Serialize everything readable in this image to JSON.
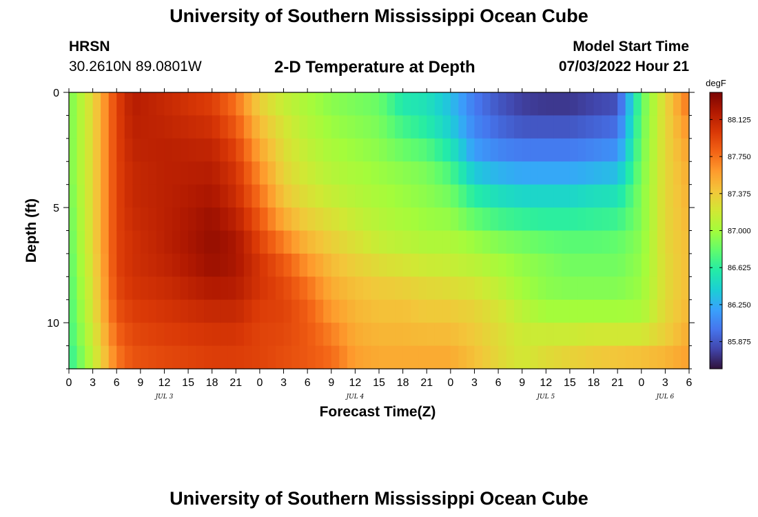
{
  "header": {
    "title": "University of Southern Mississippi Ocean Cube",
    "station": "HRSN",
    "coords": "30.2610N  89.0801W",
    "subtitle": "2-D Temperature at Depth",
    "model_start_label": "Model Start Time",
    "model_start_value": "07/03/2022 Hour 21"
  },
  "footer": {
    "title": "University of Southern Mississippi Ocean Cube"
  },
  "chart_data": {
    "type": "heatmap",
    "title": "2-D Temperature at Depth",
    "xlabel": "Forecast Time(Z)",
    "ylabel": "Depth (ft)",
    "colorbar_label": "degF",
    "x_tick_labels": [
      "0",
      "3",
      "6",
      "9",
      "12",
      "15",
      "18",
      "21",
      "0",
      "3",
      "6",
      "9",
      "12",
      "15",
      "18",
      "21",
      "0",
      "3",
      "6",
      "9",
      "12",
      "15",
      "18",
      "21",
      "0",
      "3",
      "6"
    ],
    "x_hours": [
      0,
      3,
      6,
      9,
      12,
      15,
      18,
      21,
      24,
      27,
      30,
      33,
      36,
      39,
      42,
      45,
      48,
      51,
      54,
      57,
      60,
      63,
      66,
      69,
      72,
      75,
      78
    ],
    "x_range_hours": [
      0,
      78
    ],
    "day_labels": [
      {
        "label": "JUL 3",
        "hour": 12
      },
      {
        "label": "JUL 4",
        "hour": 36
      },
      {
        "label": "JUL 5",
        "hour": 60
      },
      {
        "label": "JUL 6",
        "hour": 75
      }
    ],
    "y_tick_labels": [
      "0",
      "5",
      "10"
    ],
    "y_ticks": [
      0,
      5,
      10
    ],
    "y_range_ft": [
      0,
      12
    ],
    "colorbar_ticks": [
      "88.125",
      "87.750",
      "87.375",
      "87.000",
      "86.625",
      "86.250",
      "85.875"
    ],
    "colorbar_tick_values": [
      88.125,
      87.75,
      87.375,
      87.0,
      86.625,
      86.25,
      85.875
    ],
    "color_range_degF": [
      85.6,
      88.4
    ],
    "colormap": [
      "#30123b",
      "#4145ab",
      "#4675ed",
      "#39a2fc",
      "#1bcfd4",
      "#24eca6",
      "#61fc6c",
      "#a4fc3b",
      "#d1e834",
      "#f3c63a",
      "#fe9b2d",
      "#f36315",
      "#d93806",
      "#b11901",
      "#7a0402"
    ],
    "time_hours": [
      0,
      3,
      6,
      8,
      12,
      18,
      21,
      24,
      27,
      30,
      33,
      36,
      39,
      42,
      45,
      48,
      51,
      54,
      57,
      60,
      63,
      66,
      69,
      72,
      75,
      78
    ],
    "depth_ft": [
      0,
      1,
      2,
      3,
      4,
      5,
      6,
      7,
      8,
      9,
      10,
      11,
      12
    ],
    "temperature_degF": [
      [
        86.85,
        87.3,
        87.95,
        88.2,
        88.1,
        87.95,
        87.7,
        87.3,
        87.1,
        87.0,
        86.9,
        86.85,
        86.8,
        86.5,
        86.5,
        86.3,
        86.0,
        85.85,
        85.75,
        85.7,
        85.7,
        85.75,
        85.8,
        86.8,
        87.3,
        87.8
      ],
      [
        86.85,
        87.3,
        87.95,
        88.15,
        88.1,
        88.0,
        87.8,
        87.4,
        87.2,
        87.05,
        86.95,
        86.9,
        86.85,
        86.65,
        86.55,
        86.35,
        86.05,
        85.9,
        85.8,
        85.8,
        85.8,
        85.85,
        85.9,
        86.8,
        87.3,
        87.7
      ],
      [
        86.85,
        87.3,
        87.95,
        88.15,
        88.15,
        88.1,
        87.9,
        87.5,
        87.25,
        87.1,
        87.0,
        86.95,
        86.9,
        86.75,
        86.65,
        86.45,
        86.1,
        86.0,
        85.95,
        85.95,
        85.95,
        86.0,
        86.05,
        86.85,
        87.3,
        87.6
      ],
      [
        86.85,
        87.3,
        87.95,
        88.1,
        88.15,
        88.15,
        88.0,
        87.6,
        87.3,
        87.15,
        87.05,
        87.0,
        86.95,
        86.9,
        86.85,
        86.65,
        86.25,
        86.15,
        86.1,
        86.1,
        86.1,
        86.15,
        86.2,
        86.85,
        87.3,
        87.55
      ],
      [
        86.85,
        87.3,
        87.95,
        88.1,
        88.15,
        88.2,
        88.05,
        87.7,
        87.35,
        87.2,
        87.1,
        87.05,
        87.0,
        86.95,
        86.9,
        86.8,
        86.5,
        86.4,
        86.35,
        86.35,
        86.35,
        86.4,
        86.45,
        86.9,
        87.3,
        87.5
      ],
      [
        86.8,
        87.3,
        87.95,
        88.1,
        88.15,
        88.25,
        88.1,
        87.8,
        87.45,
        87.3,
        87.2,
        87.1,
        87.05,
        87.0,
        86.95,
        86.9,
        86.7,
        86.6,
        86.55,
        86.55,
        86.55,
        86.6,
        86.6,
        86.9,
        87.3,
        87.5
      ],
      [
        86.8,
        87.3,
        87.95,
        88.05,
        88.15,
        88.3,
        88.2,
        87.9,
        87.6,
        87.4,
        87.3,
        87.2,
        87.1,
        87.05,
        87.0,
        87.0,
        86.9,
        86.8,
        86.75,
        86.7,
        86.7,
        86.7,
        86.75,
        86.9,
        87.3,
        87.45
      ],
      [
        86.75,
        87.3,
        87.95,
        88.05,
        88.15,
        88.3,
        88.25,
        88.0,
        87.8,
        87.55,
        87.4,
        87.3,
        87.2,
        87.15,
        87.1,
        87.1,
        87.05,
        87.0,
        86.95,
        86.9,
        86.85,
        86.85,
        86.85,
        86.95,
        87.3,
        87.45
      ],
      [
        86.75,
        87.25,
        87.95,
        88.05,
        88.1,
        88.25,
        88.2,
        88.05,
        87.9,
        87.7,
        87.5,
        87.4,
        87.35,
        87.3,
        87.25,
        87.2,
        87.15,
        87.05,
        86.95,
        86.9,
        86.85,
        86.85,
        86.85,
        86.95,
        87.25,
        87.45
      ],
      [
        86.7,
        87.25,
        87.9,
        88.0,
        88.05,
        88.15,
        88.15,
        88.0,
        87.95,
        87.8,
        87.55,
        87.45,
        87.4,
        87.4,
        87.35,
        87.35,
        87.3,
        87.2,
        87.05,
        86.95,
        86.95,
        86.95,
        86.95,
        87.0,
        87.3,
        87.45
      ],
      [
        86.7,
        87.2,
        87.85,
        87.95,
        88.0,
        88.05,
        88.05,
        87.95,
        87.95,
        87.85,
        87.65,
        87.5,
        87.45,
        87.45,
        87.4,
        87.4,
        87.35,
        87.25,
        87.15,
        87.05,
        87.05,
        87.05,
        87.05,
        87.05,
        87.3,
        87.5
      ],
      [
        86.65,
        87.15,
        87.75,
        87.9,
        87.95,
        88.0,
        88.0,
        87.95,
        87.9,
        87.85,
        87.75,
        87.55,
        87.5,
        87.5,
        87.5,
        87.5,
        87.4,
        87.3,
        87.2,
        87.3,
        87.3,
        87.35,
        87.35,
        87.35,
        87.4,
        87.55
      ],
      [
        86.6,
        87.1,
        87.7,
        87.85,
        87.9,
        87.95,
        87.95,
        87.95,
        87.9,
        87.85,
        87.8,
        87.6,
        87.55,
        87.55,
        87.55,
        87.55,
        87.45,
        87.3,
        87.2,
        87.25,
        87.35,
        87.4,
        87.45,
        87.5,
        87.55,
        87.6
      ]
    ]
  }
}
